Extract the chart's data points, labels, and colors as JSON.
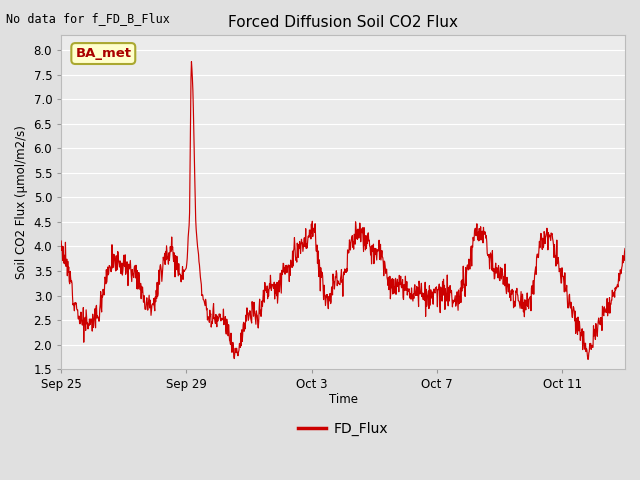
{
  "title": "Forced Diffusion Soil CO2 Flux",
  "ylabel": "Soil CO2 Flux (μmol/m2/s)",
  "xlabel": "Time",
  "top_left_text": "No data for f_FD_B_Flux",
  "legend_label": "FD_Flux",
  "ba_met_label": "BA_met",
  "ylim": [
    1.5,
    8.3
  ],
  "xlim": [
    0,
    18
  ],
  "fig_bg_color": "#e0e0e0",
  "plot_bg_color": "#ebebeb",
  "line_color": "#cc0000",
  "legend_line_color": "#cc0000",
  "ba_met_bg": "#ffffcc",
  "ba_met_border": "#aaa830",
  "ba_met_text_color": "#aa0000",
  "grid_color": "#ffffff",
  "x_tick_labels": [
    "Sep 25",
    "Sep 29",
    "Oct 3",
    "Oct 7",
    "Oct 11"
  ],
  "x_tick_positions": [
    0,
    4,
    8,
    12,
    16
  ],
  "y_ticks": [
    1.5,
    2.0,
    2.5,
    3.0,
    3.5,
    4.0,
    4.5,
    5.0,
    5.5,
    6.0,
    6.5,
    7.0,
    7.5,
    8.0
  ],
  "figsize": [
    6.4,
    4.8
  ],
  "dpi": 100,
  "t_anchor": [
    0,
    0.3,
    0.6,
    0.9,
    1.2,
    1.5,
    1.8,
    2.1,
    2.4,
    2.7,
    3.0,
    3.3,
    3.6,
    3.75,
    3.9,
    4.0,
    4.05,
    4.1,
    4.15,
    4.2,
    4.3,
    4.5,
    4.7,
    4.9,
    5.1,
    5.3,
    5.5,
    5.7,
    5.9,
    6.1,
    6.3,
    6.5,
    6.7,
    6.9,
    7.1,
    7.3,
    7.5,
    7.7,
    7.9,
    8.0,
    8.1,
    8.2,
    8.3,
    8.4,
    8.5,
    8.6,
    8.7,
    8.9,
    9.0,
    9.3,
    9.6,
    9.9,
    10.2,
    10.5,
    10.8,
    11.1,
    11.4,
    11.7,
    12.0,
    12.3,
    12.6,
    12.9,
    13.2,
    13.5,
    13.8,
    14.1,
    14.4,
    14.7,
    15.0,
    15.3,
    15.6,
    15.9,
    16.2,
    16.5,
    16.8,
    17.1,
    17.4,
    17.7,
    18.0
  ],
  "y_anchor": [
    4.05,
    3.3,
    2.5,
    2.4,
    2.65,
    3.6,
    3.7,
    3.55,
    3.5,
    2.85,
    2.9,
    3.85,
    3.85,
    3.5,
    3.5,
    3.55,
    4.1,
    4.7,
    7.85,
    7.3,
    4.4,
    3.0,
    2.55,
    2.5,
    2.5,
    2.35,
    1.85,
    2.0,
    2.55,
    2.6,
    2.6,
    3.05,
    3.2,
    3.1,
    3.55,
    3.55,
    3.85,
    4.05,
    4.1,
    4.35,
    4.3,
    3.65,
    3.55,
    3.0,
    3.0,
    2.85,
    3.3,
    3.35,
    3.4,
    4.2,
    4.25,
    3.9,
    3.85,
    3.2,
    3.15,
    3.1,
    3.1,
    2.9,
    3.0,
    3.05,
    2.85,
    3.3,
    4.2,
    4.25,
    3.55,
    3.4,
    3.0,
    2.9,
    2.85,
    4.2,
    4.25,
    3.55,
    2.9,
    2.35,
    1.85,
    2.3,
    2.8,
    3.1,
    3.8
  ]
}
